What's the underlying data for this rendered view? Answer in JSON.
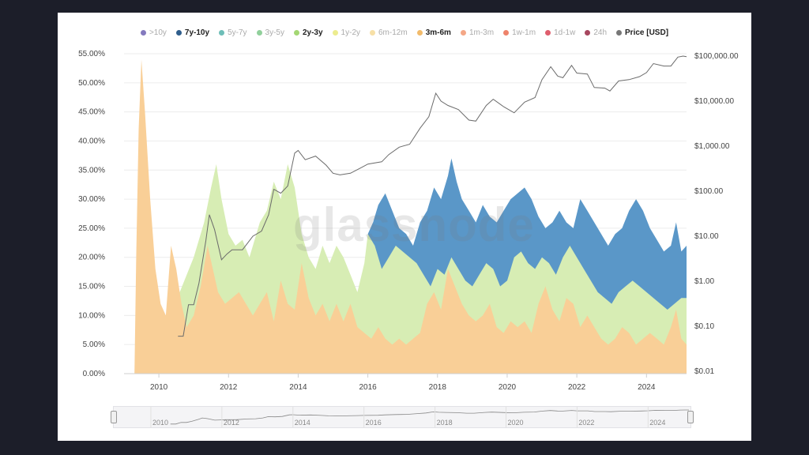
{
  "chart_data": {
    "type": "area",
    "watermark": "glassnode",
    "legend": [
      {
        "label": ">10y",
        "color": "#5b4ea8",
        "active": false
      },
      {
        "label": "7y-10y",
        "color": "#2f5e8c",
        "active": true
      },
      {
        "label": "5y-7y",
        "color": "#3ea8a0",
        "active": false
      },
      {
        "label": "3y-5y",
        "color": "#6cc07a",
        "active": false
      },
      {
        "label": "2y-3y",
        "color": "#a4d774",
        "active": true
      },
      {
        "label": "1y-2y",
        "color": "#e6e66a",
        "active": false
      },
      {
        "label": "6m-12m",
        "color": "#f4d58a",
        "active": false
      },
      {
        "label": "3m-6m",
        "color": "#f2bb6b",
        "active": true
      },
      {
        "label": "1m-3m",
        "color": "#f08a5d",
        "active": false
      },
      {
        "label": "1w-1m",
        "color": "#e85a3a",
        "active": false
      },
      {
        "label": "1d-1w",
        "color": "#d4283c",
        "active": false
      },
      {
        "label": "24h",
        "color": "#8a0a2a",
        "active": false
      },
      {
        "label": "Price [USD]",
        "color": "#777777",
        "active": true
      }
    ],
    "left_axis": {
      "ylim": [
        0,
        55
      ],
      "ticks": [
        "0.00%",
        "5.00%",
        "10.00%",
        "15.00%",
        "20.00%",
        "25.00%",
        "30.00%",
        "35.00%",
        "40.00%",
        "45.00%",
        "50.00%",
        "55.00%"
      ]
    },
    "right_axis": {
      "scale": "log",
      "ticks": [
        "$0.01",
        "$0.10",
        "$1.00",
        "$10.00",
        "$100.00",
        "$1,000.00",
        "$10,000.00",
        "$100,000.00"
      ],
      "values": [
        0.01,
        0.1,
        1,
        10,
        100,
        1000,
        10000,
        100000
      ]
    },
    "x_axis": {
      "xlim": [
        2009.0,
        2025.15
      ],
      "ticks": [
        "2010",
        "2012",
        "2014",
        "2016",
        "2018",
        "2020",
        "2022",
        "2024"
      ]
    },
    "series": [
      {
        "name": "3m-6m",
        "color": "#f9cf97",
        "points": [
          [
            2009.3,
            0
          ],
          [
            2009.35,
            20
          ],
          [
            2009.42,
            42
          ],
          [
            2009.5,
            54
          ],
          [
            2009.6,
            45
          ],
          [
            2009.75,
            30
          ],
          [
            2009.9,
            18
          ],
          [
            2010.05,
            12
          ],
          [
            2010.2,
            10
          ],
          [
            2010.35,
            22
          ],
          [
            2010.5,
            18
          ],
          [
            2010.65,
            12
          ],
          [
            2010.8,
            8
          ],
          [
            2011.0,
            10
          ],
          [
            2011.2,
            15
          ],
          [
            2011.4,
            22
          ],
          [
            2011.55,
            18
          ],
          [
            2011.7,
            14
          ],
          [
            2011.9,
            12
          ],
          [
            2012.1,
            13
          ],
          [
            2012.3,
            14
          ],
          [
            2012.5,
            12
          ],
          [
            2012.7,
            10
          ],
          [
            2012.9,
            12
          ],
          [
            2013.1,
            14
          ],
          [
            2013.3,
            9
          ],
          [
            2013.5,
            16
          ],
          [
            2013.7,
            12
          ],
          [
            2013.9,
            11
          ],
          [
            2014.1,
            19
          ],
          [
            2014.3,
            13
          ],
          [
            2014.5,
            10
          ],
          [
            2014.7,
            12
          ],
          [
            2014.9,
            9
          ],
          [
            2015.1,
            12
          ],
          [
            2015.3,
            9
          ],
          [
            2015.5,
            12
          ],
          [
            2015.7,
            8
          ],
          [
            2015.9,
            7
          ],
          [
            2016.1,
            6
          ],
          [
            2016.3,
            8
          ],
          [
            2016.5,
            6
          ],
          [
            2016.7,
            5
          ],
          [
            2016.9,
            6
          ],
          [
            2017.1,
            5
          ],
          [
            2017.3,
            6
          ],
          [
            2017.5,
            7
          ],
          [
            2017.7,
            12
          ],
          [
            2017.9,
            14
          ],
          [
            2018.1,
            11
          ],
          [
            2018.3,
            18
          ],
          [
            2018.5,
            15
          ],
          [
            2018.7,
            12
          ],
          [
            2018.9,
            10
          ],
          [
            2019.1,
            9
          ],
          [
            2019.3,
            10
          ],
          [
            2019.5,
            12
          ],
          [
            2019.7,
            8
          ],
          [
            2019.9,
            7
          ],
          [
            2020.1,
            9
          ],
          [
            2020.3,
            8
          ],
          [
            2020.5,
            9
          ],
          [
            2020.7,
            7
          ],
          [
            2020.9,
            12
          ],
          [
            2021.1,
            15
          ],
          [
            2021.3,
            11
          ],
          [
            2021.5,
            9
          ],
          [
            2021.7,
            13
          ],
          [
            2021.9,
            12
          ],
          [
            2022.1,
            8
          ],
          [
            2022.3,
            10
          ],
          [
            2022.5,
            8
          ],
          [
            2022.7,
            6
          ],
          [
            2022.9,
            5
          ],
          [
            2023.1,
            6
          ],
          [
            2023.3,
            8
          ],
          [
            2023.5,
            7
          ],
          [
            2023.7,
            5
          ],
          [
            2023.9,
            6
          ],
          [
            2024.1,
            7
          ],
          [
            2024.3,
            6
          ],
          [
            2024.5,
            5
          ],
          [
            2024.7,
            8
          ],
          [
            2024.85,
            11
          ],
          [
            2025.0,
            6
          ],
          [
            2025.15,
            5
          ]
        ]
      },
      {
        "name": "2y-3y",
        "color": "#d7edb4",
        "points": [
          [
            2009.3,
            0
          ],
          [
            2009.8,
            0
          ],
          [
            2010.3,
            8
          ],
          [
            2010.6,
            14
          ],
          [
            2011.0,
            20
          ],
          [
            2011.3,
            26
          ],
          [
            2011.5,
            32
          ],
          [
            2011.65,
            36
          ],
          [
            2011.8,
            30
          ],
          [
            2012.0,
            24
          ],
          [
            2012.2,
            22
          ],
          [
            2012.4,
            23
          ],
          [
            2012.6,
            20
          ],
          [
            2012.9,
            26
          ],
          [
            2013.1,
            28
          ],
          [
            2013.3,
            33
          ],
          [
            2013.5,
            30
          ],
          [
            2013.7,
            36
          ],
          [
            2013.9,
            32
          ],
          [
            2014.1,
            24
          ],
          [
            2014.3,
            20
          ],
          [
            2014.5,
            18
          ],
          [
            2014.7,
            22
          ],
          [
            2014.9,
            19
          ],
          [
            2015.1,
            22
          ],
          [
            2015.3,
            20
          ],
          [
            2015.5,
            17
          ],
          [
            2015.7,
            14
          ],
          [
            2015.9,
            19
          ],
          [
            2016.0,
            24
          ],
          [
            2016.2,
            22
          ],
          [
            2016.4,
            18
          ],
          [
            2016.6,
            20
          ],
          [
            2016.8,
            22
          ],
          [
            2017.0,
            21
          ],
          [
            2017.2,
            20
          ],
          [
            2017.4,
            19
          ],
          [
            2017.6,
            17
          ],
          [
            2017.8,
            15
          ],
          [
            2018.0,
            18
          ],
          [
            2018.2,
            17
          ],
          [
            2018.4,
            20
          ],
          [
            2018.6,
            18
          ],
          [
            2018.8,
            16
          ],
          [
            2019.0,
            15
          ],
          [
            2019.2,
            17
          ],
          [
            2019.4,
            19
          ],
          [
            2019.6,
            18
          ],
          [
            2019.8,
            15
          ],
          [
            2020.0,
            16
          ],
          [
            2020.2,
            20
          ],
          [
            2020.4,
            21
          ],
          [
            2020.6,
            19
          ],
          [
            2020.8,
            18
          ],
          [
            2021.0,
            20
          ],
          [
            2021.2,
            19
          ],
          [
            2021.4,
            17
          ],
          [
            2021.6,
            20
          ],
          [
            2021.8,
            22
          ],
          [
            2022.0,
            20
          ],
          [
            2022.2,
            18
          ],
          [
            2022.4,
            16
          ],
          [
            2022.6,
            14
          ],
          [
            2022.8,
            13
          ],
          [
            2023.0,
            12
          ],
          [
            2023.2,
            14
          ],
          [
            2023.4,
            15
          ],
          [
            2023.6,
            16
          ],
          [
            2023.8,
            15
          ],
          [
            2024.0,
            14
          ],
          [
            2024.2,
            13
          ],
          [
            2024.4,
            12
          ],
          [
            2024.6,
            11
          ],
          [
            2024.8,
            12
          ],
          [
            2025.0,
            13
          ],
          [
            2025.15,
            13
          ]
        ]
      },
      {
        "name": "7y-10y",
        "color": "#5a97c8",
        "points": [
          [
            2016.0,
            24
          ],
          [
            2016.15,
            26
          ],
          [
            2016.3,
            29
          ],
          [
            2016.5,
            31
          ],
          [
            2016.7,
            28
          ],
          [
            2016.9,
            25
          ],
          [
            2017.1,
            24
          ],
          [
            2017.3,
            22
          ],
          [
            2017.5,
            26
          ],
          [
            2017.7,
            28
          ],
          [
            2017.9,
            32
          ],
          [
            2018.1,
            30
          ],
          [
            2018.3,
            34
          ],
          [
            2018.4,
            37
          ],
          [
            2018.55,
            33
          ],
          [
            2018.7,
            30
          ],
          [
            2018.9,
            28
          ],
          [
            2019.1,
            26
          ],
          [
            2019.3,
            29
          ],
          [
            2019.5,
            27
          ],
          [
            2019.7,
            26
          ],
          [
            2019.9,
            28
          ],
          [
            2020.1,
            30
          ],
          [
            2020.3,
            31
          ],
          [
            2020.5,
            32
          ],
          [
            2020.7,
            30
          ],
          [
            2020.9,
            27
          ],
          [
            2021.1,
            25
          ],
          [
            2021.3,
            26
          ],
          [
            2021.5,
            28
          ],
          [
            2021.7,
            26
          ],
          [
            2021.9,
            25
          ],
          [
            2022.1,
            30
          ],
          [
            2022.3,
            28
          ],
          [
            2022.5,
            26
          ],
          [
            2022.7,
            24
          ],
          [
            2022.9,
            22
          ],
          [
            2023.1,
            24
          ],
          [
            2023.3,
            25
          ],
          [
            2023.5,
            28
          ],
          [
            2023.7,
            30
          ],
          [
            2023.9,
            28
          ],
          [
            2024.1,
            25
          ],
          [
            2024.3,
            23
          ],
          [
            2024.5,
            21
          ],
          [
            2024.7,
            22
          ],
          [
            2024.85,
            26
          ],
          [
            2025.0,
            21
          ],
          [
            2025.15,
            22
          ]
        ]
      }
    ],
    "price_usd": [
      [
        2010.55,
        0.06
      ],
      [
        2010.7,
        0.06
      ],
      [
        2010.85,
        0.3
      ],
      [
        2011.0,
        0.3
      ],
      [
        2011.15,
        0.9
      ],
      [
        2011.35,
        8
      ],
      [
        2011.45,
        30
      ],
      [
        2011.6,
        14
      ],
      [
        2011.8,
        3
      ],
      [
        2011.95,
        4
      ],
      [
        2012.1,
        5
      ],
      [
        2012.4,
        5
      ],
      [
        2012.7,
        10
      ],
      [
        2012.95,
        13
      ],
      [
        2013.15,
        30
      ],
      [
        2013.3,
        110
      ],
      [
        2013.5,
        90
      ],
      [
        2013.7,
        130
      ],
      [
        2013.9,
        700
      ],
      [
        2014.0,
        800
      ],
      [
        2014.2,
        500
      ],
      [
        2014.5,
        600
      ],
      [
        2014.8,
        380
      ],
      [
        2015.0,
        250
      ],
      [
        2015.2,
        230
      ],
      [
        2015.5,
        250
      ],
      [
        2015.8,
        330
      ],
      [
        2016.0,
        400
      ],
      [
        2016.4,
        450
      ],
      [
        2016.6,
        650
      ],
      [
        2016.9,
        950
      ],
      [
        2017.2,
        1100
      ],
      [
        2017.5,
        2500
      ],
      [
        2017.75,
        4500
      ],
      [
        2017.95,
        15000
      ],
      [
        2018.1,
        10000
      ],
      [
        2018.3,
        8000
      ],
      [
        2018.6,
        6500
      ],
      [
        2018.9,
        3800
      ],
      [
        2019.1,
        3600
      ],
      [
        2019.4,
        8000
      ],
      [
        2019.6,
        11000
      ],
      [
        2019.9,
        7500
      ],
      [
        2020.2,
        5500
      ],
      [
        2020.5,
        9500
      ],
      [
        2020.8,
        12000
      ],
      [
        2021.0,
        30000
      ],
      [
        2021.25,
        58000
      ],
      [
        2021.45,
        36000
      ],
      [
        2021.6,
        33000
      ],
      [
        2021.85,
        62000
      ],
      [
        2022.0,
        42000
      ],
      [
        2022.3,
        40000
      ],
      [
        2022.5,
        20000
      ],
      [
        2022.8,
        19500
      ],
      [
        2022.95,
        16800
      ],
      [
        2023.2,
        28000
      ],
      [
        2023.5,
        30000
      ],
      [
        2023.8,
        35000
      ],
      [
        2024.0,
        43000
      ],
      [
        2024.2,
        68000
      ],
      [
        2024.5,
        60000
      ],
      [
        2024.7,
        60000
      ],
      [
        2024.9,
        95000
      ],
      [
        2025.05,
        100000
      ],
      [
        2025.15,
        97000
      ]
    ]
  }
}
